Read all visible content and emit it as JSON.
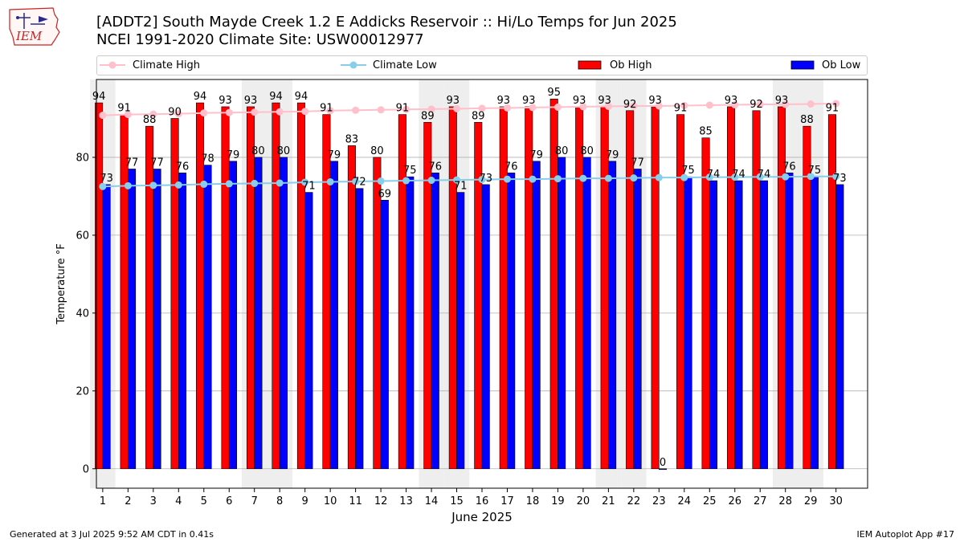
{
  "header": {
    "title_line1": "[ADDT2] South Mayde Creek 1.2 E Addicks Reservoir :: Hi/Lo Temps for Jun 2025",
    "title_line2": "NCEI 1991-2020 Climate Site: USW00012977",
    "logo_text": "IEM"
  },
  "footer": {
    "left": "Generated at 3 Jul 2025 9:52 AM CDT in 0.41s",
    "right": "IEM Autoplot App #17"
  },
  "colors": {
    "ob_high": "#ff0000",
    "ob_low": "#0000ff",
    "climate_high": "#ffc0cb",
    "climate_low": "#87ceeb",
    "weekend_band": "#eeeeee",
    "grid": "#b0b0b0"
  },
  "chart_data": {
    "type": "bar",
    "xlabel": "June 2025",
    "ylabel": "Temperature °F",
    "ylim": [
      -5,
      100
    ],
    "yticks": [
      0,
      20,
      40,
      60,
      80
    ],
    "grid": "horizontal",
    "legend_position": "top",
    "categories": [
      "1",
      "2",
      "3",
      "4",
      "5",
      "6",
      "7",
      "8",
      "9",
      "10",
      "11",
      "12",
      "13",
      "14",
      "15",
      "16",
      "17",
      "18",
      "19",
      "20",
      "21",
      "22",
      "23",
      "24",
      "25",
      "26",
      "27",
      "28",
      "29",
      "30"
    ],
    "weekend_days": [
      1,
      7,
      8,
      14,
      15,
      21,
      22,
      28,
      29
    ],
    "series": [
      {
        "name": "Ob High",
        "kind": "bar",
        "values": [
          94,
          91,
          88,
          90,
          94,
          93,
          93,
          94,
          94,
          91,
          83,
          80,
          91,
          89,
          93,
          89,
          93,
          93,
          95,
          93,
          93,
          92,
          93,
          91,
          85,
          93,
          92,
          93,
          88,
          91
        ]
      },
      {
        "name": "Ob Low",
        "kind": "bar",
        "values": [
          73,
          77,
          77,
          76,
          78,
          79,
          80,
          80,
          71,
          79,
          72,
          69,
          75,
          76,
          71,
          73,
          76,
          79,
          80,
          80,
          79,
          77,
          0,
          75,
          74,
          74,
          74,
          76,
          75,
          73
        ]
      },
      {
        "name": "Climate High",
        "kind": "line",
        "values": [
          90.8,
          91.0,
          91.1,
          91.2,
          91.4,
          91.5,
          91.6,
          91.7,
          91.8,
          92.0,
          92.1,
          92.2,
          92.3,
          92.4,
          92.5,
          92.6,
          92.7,
          92.8,
          92.9,
          93.0,
          93.1,
          93.2,
          93.2,
          93.3,
          93.4,
          93.5,
          93.6,
          93.6,
          93.7,
          93.8
        ]
      },
      {
        "name": "Climate Low",
        "kind": "line",
        "values": [
          72.5,
          72.7,
          72.8,
          72.9,
          73.1,
          73.2,
          73.3,
          73.4,
          73.6,
          73.7,
          73.8,
          73.9,
          74.0,
          74.1,
          74.2,
          74.3,
          74.4,
          74.4,
          74.5,
          74.6,
          74.6,
          74.7,
          74.8,
          74.8,
          74.9,
          74.9,
          75.0,
          75.0,
          75.1,
          75.1
        ]
      }
    ]
  }
}
